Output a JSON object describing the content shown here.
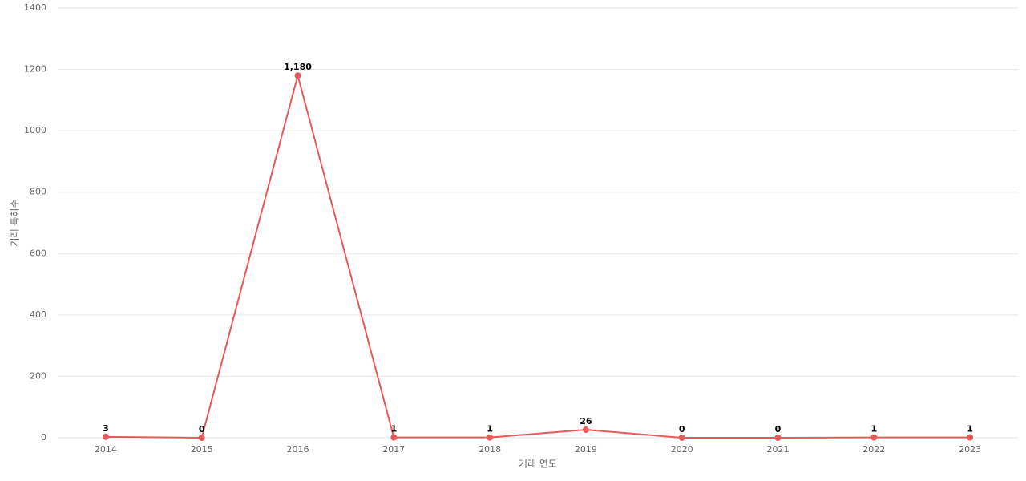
{
  "chart_data": {
    "type": "line",
    "x_label": "거래 연도",
    "y_label": "거래 특허수",
    "categories": [
      "2014",
      "2015",
      "2016",
      "2017",
      "2018",
      "2019",
      "2020",
      "2021",
      "2022",
      "2023"
    ],
    "series": [
      {
        "color": "#e85a5a",
        "values": [
          3,
          0,
          1180,
          1,
          1,
          26,
          0,
          0,
          1,
          1
        ],
        "value_labels": [
          "3",
          "0",
          "1,180",
          "1",
          "1",
          "26",
          "0",
          "0",
          "1",
          "1"
        ]
      }
    ],
    "ylim": [
      0,
      1400
    ],
    "yticks": [
      0,
      200,
      400,
      600,
      800,
      1000,
      1200,
      1400
    ],
    "grid": true
  }
}
